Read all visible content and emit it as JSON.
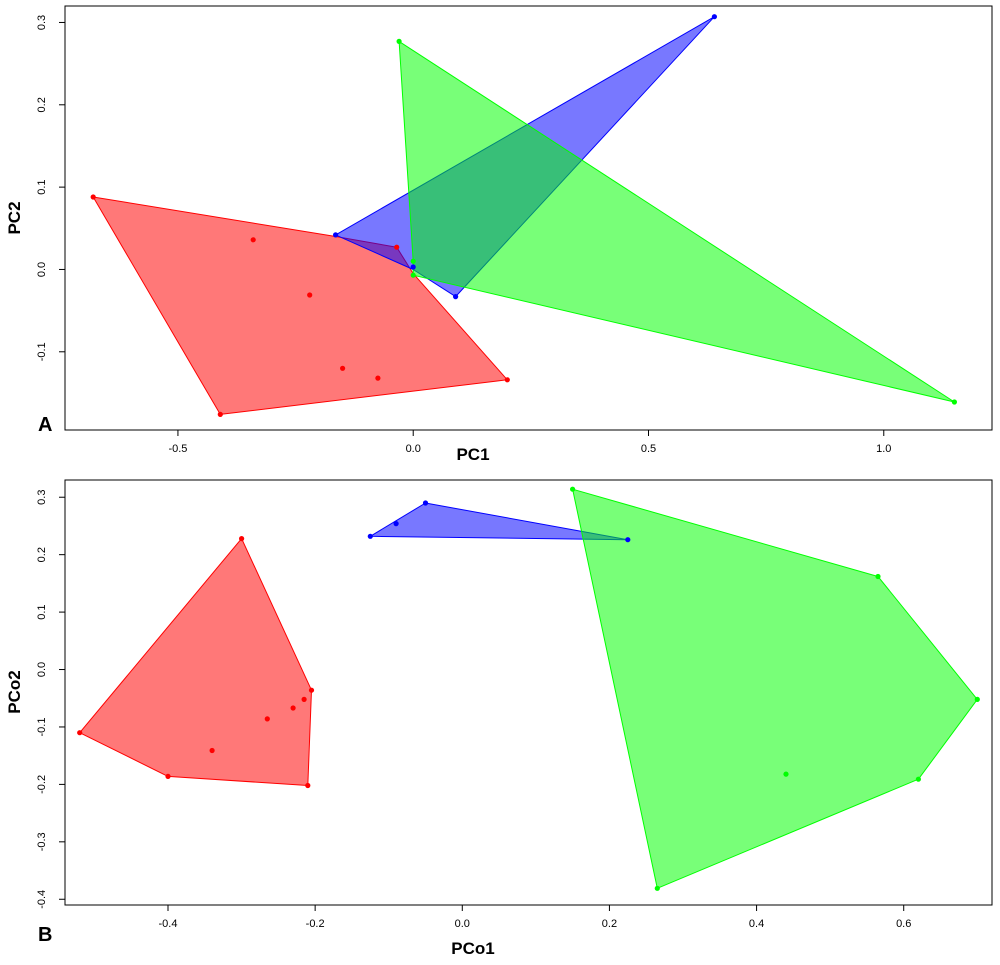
{
  "chart_data": [
    {
      "type": "scatter",
      "panel_label": "A",
      "xlabel": "PC1",
      "ylabel": "PC2",
      "xlim": [
        -0.74,
        1.23
      ],
      "ylim": [
        -0.195,
        0.32
      ],
      "xticks": [
        -0.5,
        0.0,
        0.5,
        1.0
      ],
      "xtick_labels": [
        "-0.5",
        "0.0",
        "0.5",
        "1.0"
      ],
      "yticks": [
        -0.1,
        0.0,
        0.1,
        0.2,
        0.3
      ],
      "ytick_labels": [
        "-0.1",
        "0.0",
        "0.1",
        "0.2",
        "0.3"
      ],
      "grid": false,
      "series": [
        {
          "color": "#ff0000",
          "fill": "#ff0000",
          "hull": [
            [
              -0.68,
              0.088
            ],
            [
              -0.165,
              0.04
            ],
            [
              -0.035,
              0.027
            ],
            [
              0.0,
              -0.005
            ],
            [
              0.2,
              -0.134
            ],
            [
              -0.41,
              -0.176
            ]
          ],
          "points": [
            [
              -0.68,
              0.088
            ],
            [
              -0.34,
              0.036
            ],
            [
              -0.22,
              -0.031
            ],
            [
              -0.15,
              -0.12
            ],
            [
              -0.075,
              -0.132
            ],
            [
              0.2,
              -0.134
            ],
            [
              -0.41,
              -0.176
            ],
            [
              -0.035,
              0.027
            ]
          ]
        },
        {
          "color": "#0000ff",
          "fill": "#0000ff",
          "hull": [
            [
              0.64,
              0.307
            ],
            [
              0.09,
              -0.033
            ],
            [
              0.0,
              0.0
            ],
            [
              -0.165,
              0.042
            ]
          ],
          "points": [
            [
              0.64,
              0.307
            ],
            [
              -0.165,
              0.042
            ],
            [
              0.09,
              -0.033
            ],
            [
              0.0,
              0.003
            ]
          ]
        },
        {
          "color": "#00ff00",
          "fill": "#00ff00",
          "hull": [
            [
              -0.03,
              0.277
            ],
            [
              1.15,
              -0.161
            ],
            [
              0.0,
              -0.007
            ],
            [
              0.0,
              0.01
            ]
          ],
          "points": [
            [
              -0.03,
              0.277
            ],
            [
              1.15,
              -0.161
            ],
            [
              0.0,
              0.01
            ],
            [
              0.0,
              -0.007
            ]
          ]
        }
      ]
    },
    {
      "type": "scatter",
      "panel_label": "B",
      "xlabel": "PCo1",
      "ylabel": "PCo2",
      "xlim": [
        -0.54,
        0.72
      ],
      "ylim": [
        -0.41,
        0.33
      ],
      "xticks": [
        -0.4,
        -0.2,
        0.0,
        0.2,
        0.4,
        0.6
      ],
      "xtick_labels": [
        "-0.4",
        "-0.2",
        "0.0",
        "0.2",
        "0.4",
        "0.6"
      ],
      "yticks": [
        -0.4,
        -0.3,
        -0.2,
        -0.1,
        0.0,
        0.1,
        0.2,
        0.3
      ],
      "ytick_labels": [
        "-0.4",
        "-0.3",
        "-0.2",
        "-0.1",
        "0.0",
        "0.1",
        "0.2",
        "0.3"
      ],
      "grid": false,
      "series": [
        {
          "color": "#ff0000",
          "fill": "#ff0000",
          "hull": [
            [
              -0.3,
              0.228
            ],
            [
              -0.205,
              -0.036
            ],
            [
              -0.21,
              -0.202
            ],
            [
              -0.4,
              -0.186
            ],
            [
              -0.52,
              -0.11
            ]
          ],
          "points": [
            [
              -0.3,
              0.228
            ],
            [
              -0.205,
              -0.036
            ],
            [
              -0.215,
              -0.052
            ],
            [
              -0.23,
              -0.067
            ],
            [
              -0.265,
              -0.086
            ],
            [
              -0.34,
              -0.141
            ],
            [
              -0.21,
              -0.202
            ],
            [
              -0.4,
              -0.186
            ],
            [
              -0.52,
              -0.11
            ]
          ]
        },
        {
          "color": "#0000ff",
          "fill": "#0000ff",
          "hull": [
            [
              -0.05,
              0.29
            ],
            [
              0.225,
              0.226
            ],
            [
              -0.125,
              0.232
            ]
          ],
          "points": [
            [
              -0.05,
              0.29
            ],
            [
              -0.09,
              0.254
            ],
            [
              0.225,
              0.226
            ],
            [
              -0.125,
              0.232
            ]
          ]
        },
        {
          "color": "#00ff00",
          "fill": "#00ff00",
          "hull": [
            [
              0.15,
              0.314
            ],
            [
              0.565,
              0.162
            ],
            [
              0.7,
              -0.052
            ],
            [
              0.62,
              -0.191
            ],
            [
              0.265,
              -0.381
            ]
          ],
          "points": [
            [
              0.15,
              0.314
            ],
            [
              0.565,
              0.162
            ],
            [
              0.7,
              -0.052
            ],
            [
              0.62,
              -0.191
            ],
            [
              0.44,
              -0.182
            ],
            [
              0.265,
              -0.381
            ]
          ]
        }
      ]
    }
  ]
}
